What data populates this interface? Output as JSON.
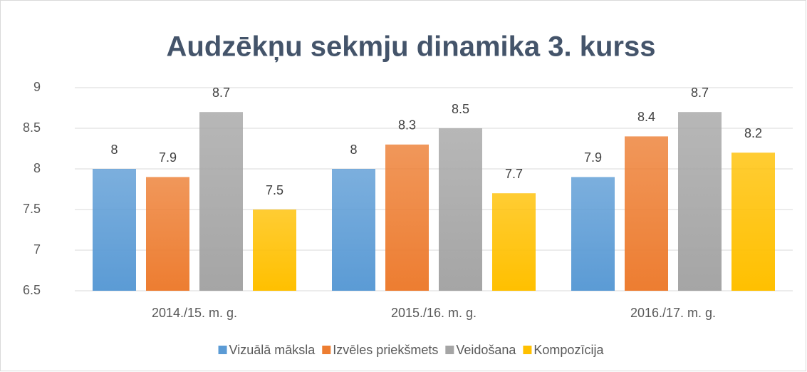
{
  "chart_data": {
    "type": "bar",
    "title": "Audzēkņu sekmju dinamika 3. kurss",
    "categories": [
      "2014./15. m. g.",
      "2015./16. m. g.",
      "2016./17. m. g."
    ],
    "series": [
      {
        "name": "Vizuālā māksla",
        "color": "#5b9bd5",
        "values": [
          8,
          8,
          7.9
        ]
      },
      {
        "name": "Izvēles priekšmets",
        "color": "#ed7d31",
        "values": [
          7.9,
          8.3,
          8.4
        ]
      },
      {
        "name": "Veidošana",
        "color": "#a5a5a5",
        "values": [
          8.7,
          8.5,
          8.7
        ]
      },
      {
        "name": "Kompozīcija",
        "color": "#ffc000",
        "values": [
          7.5,
          7.7,
          8.2
        ]
      }
    ],
    "ylim": [
      6.5,
      9
    ],
    "yticks": [
      6.5,
      7,
      7.5,
      8,
      8.5,
      9
    ],
    "grid": true,
    "legend": "bottom"
  }
}
